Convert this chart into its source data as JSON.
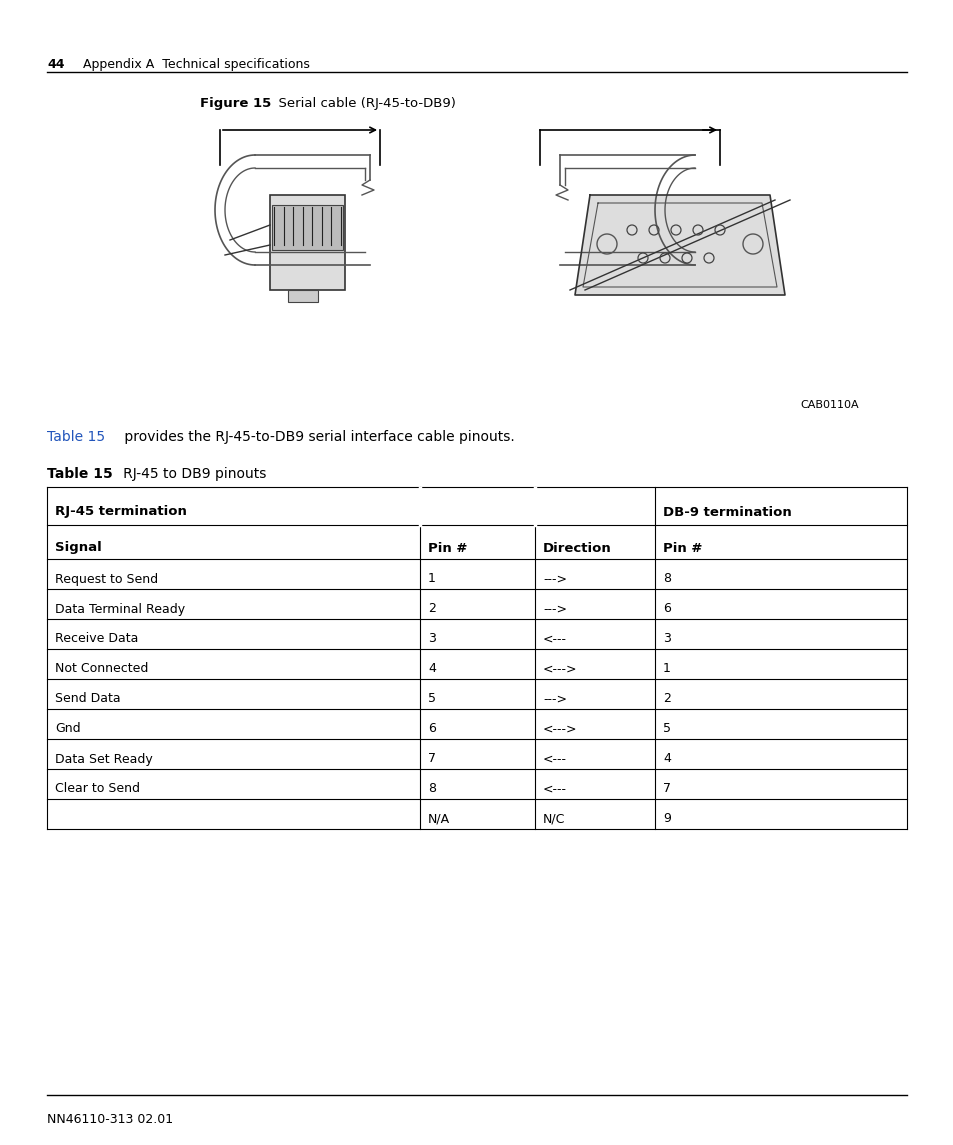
{
  "page_number": "44",
  "page_header": "Appendix A  Technical specifications",
  "figure_label": "Figure 15",
  "figure_title": "   Serial cable (RJ-45-to-DB9)",
  "figure_tag": "CAB0110A",
  "paragraph_link": "Table 15",
  "paragraph_rest": " provides the RJ-45-to-DB9 serial interface cable pinouts.",
  "table_label": "Table 15",
  "table_title": "   RJ-45 to DB9 pinouts",
  "col_headers_row1_left": "RJ-45 termination",
  "col_headers_row1_right": "DB-9 termination",
  "col_headers_row2": [
    "Signal",
    "Pin #",
    "Direction",
    "Pin #"
  ],
  "table_data": [
    [
      "Request to Send",
      "1",
      "--->",
      "8"
    ],
    [
      "Data Terminal Ready",
      "2",
      "--->",
      "6"
    ],
    [
      "Receive Data",
      "3",
      "<---",
      "3"
    ],
    [
      "Not Connected",
      "4",
      "<--->",
      "1"
    ],
    [
      "Send Data",
      "5",
      "--->",
      "2"
    ],
    [
      "Gnd",
      "6",
      "<--->",
      "5"
    ],
    [
      "Data Set Ready",
      "7",
      "<---",
      "4"
    ],
    [
      "Clear to Send",
      "8",
      "<---",
      "7"
    ],
    [
      "",
      "N/A",
      "N/C",
      "9"
    ]
  ],
  "footer_text": "NN46110-313 02.01",
  "bg_color": "#ffffff",
  "text_color": "#000000",
  "link_color": "#2255bb",
  "table_border_color": "#000000"
}
